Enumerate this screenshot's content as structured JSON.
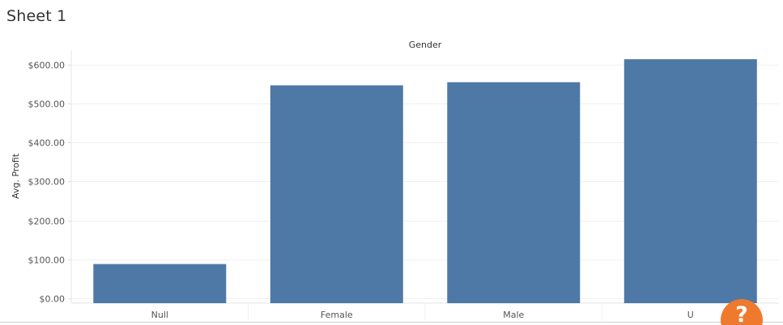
{
  "sheet": {
    "title": "Sheet 1"
  },
  "chart_data": {
    "type": "bar",
    "column_header": "Gender",
    "ylabel": "Avg. Profit",
    "categories": [
      "Null",
      "Female",
      "Male",
      "U"
    ],
    "values": [
      88,
      547,
      555,
      614
    ],
    "ylim": [
      0,
      640
    ],
    "yticks": [
      {
        "value": 0,
        "label": "$0.00"
      },
      {
        "value": 100,
        "label": "$100.00"
      },
      {
        "value": 200,
        "label": "$200.00"
      },
      {
        "value": 300,
        "label": "$300.00"
      },
      {
        "value": 400,
        "label": "$400.00"
      },
      {
        "value": 500,
        "label": "$500.00"
      },
      {
        "value": 600,
        "label": "$600.00"
      }
    ],
    "grid": true,
    "bar_color": "#4e79a7",
    "gridline_color": "#f0f0f0"
  },
  "help": {
    "label": "?",
    "color": "#ef7a2e"
  }
}
